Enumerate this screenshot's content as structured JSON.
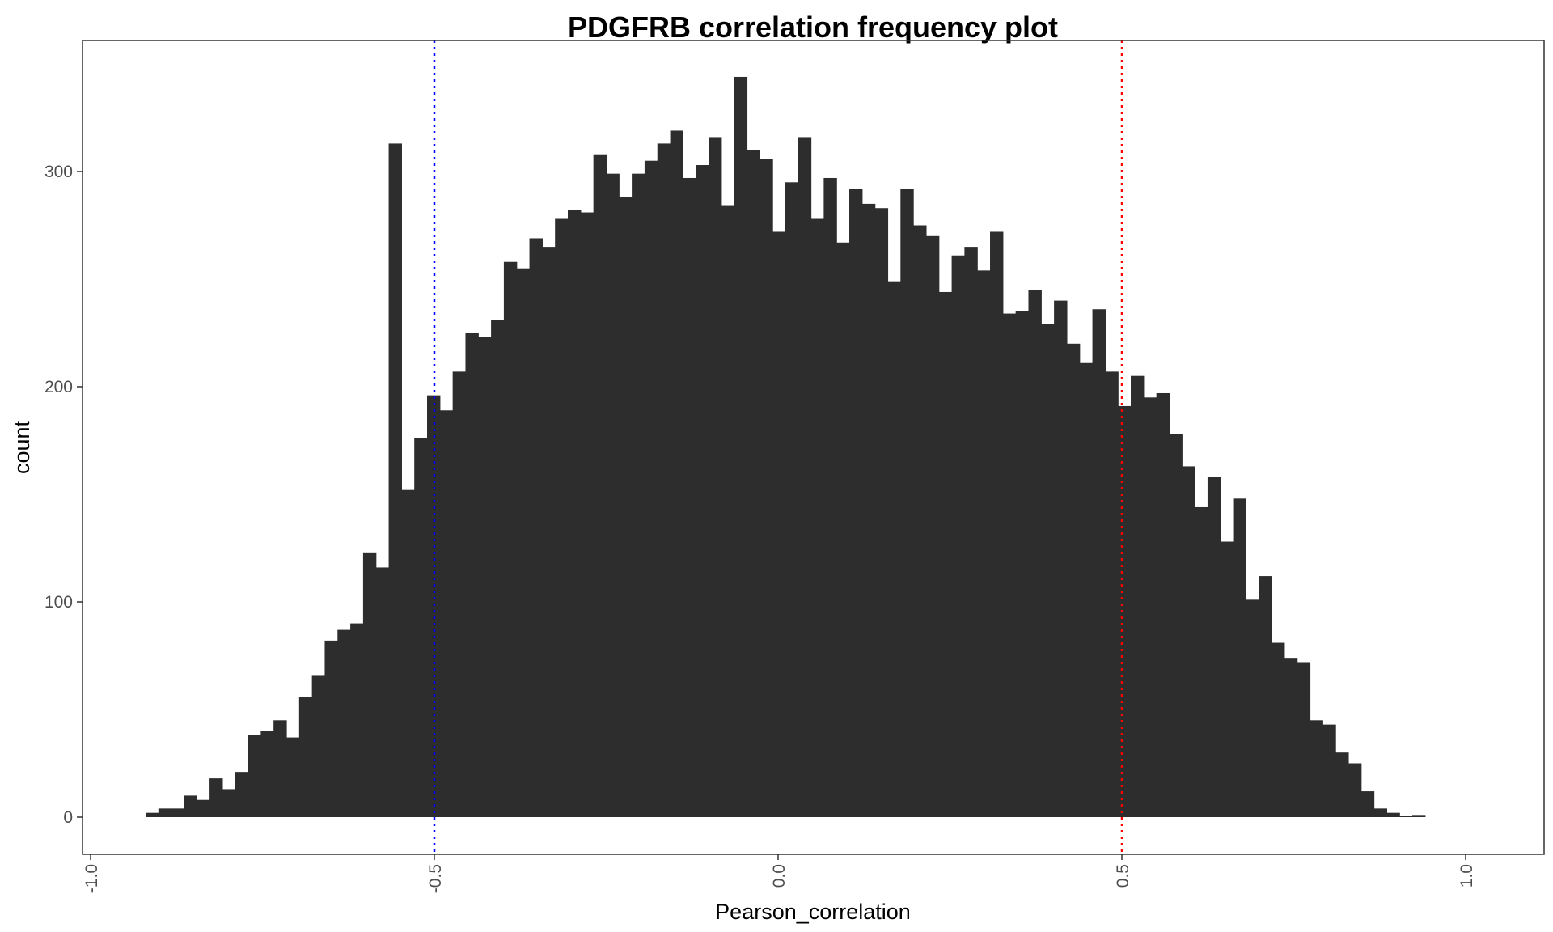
{
  "chart_data": {
    "type": "bar",
    "title": "PDGFRB correlation frequency plot",
    "xlabel": "Pearson_correlation",
    "ylabel": "count",
    "xlim": [
      -1.0,
      1.0
    ],
    "ylim": [
      0,
      350
    ],
    "x_ticks": [
      {
        "value": -1.0,
        "label": "-1.0"
      },
      {
        "value": -0.5,
        "label": "-0.5"
      },
      {
        "value": 0.0,
        "label": "0.0"
      },
      {
        "value": 0.5,
        "label": "0.5"
      },
      {
        "value": 1.0,
        "label": "1.0"
      }
    ],
    "y_ticks": [
      {
        "value": 0,
        "label": "0"
      },
      {
        "value": 100,
        "label": "100"
      },
      {
        "value": 200,
        "label": "200"
      },
      {
        "value": 300,
        "label": "300"
      }
    ],
    "bin_start": -0.92,
    "bin_width": 0.01861,
    "values": [
      2,
      4,
      4,
      10,
      8,
      18,
      13,
      21,
      38,
      40,
      45,
      37,
      56,
      66,
      82,
      87,
      90,
      123,
      116,
      313,
      152,
      176,
      196,
      189,
      207,
      225,
      223,
      231,
      258,
      255,
      269,
      265,
      278,
      282,
      281,
      308,
      299,
      288,
      299,
      305,
      313,
      319,
      297,
      303,
      316,
      284,
      344,
      310,
      306,
      272,
      295,
      316,
      278,
      297,
      267,
      292,
      285,
      283,
      249,
      292,
      275,
      270,
      244,
      261,
      265,
      254,
      272,
      234,
      235,
      245,
      229,
      240,
      220,
      211,
      236,
      207,
      191,
      205,
      195,
      197,
      178,
      163,
      144,
      158,
      128,
      148,
      101,
      112,
      81,
      74,
      72,
      45,
      43,
      30,
      25,
      12,
      4,
      2,
      0,
      1
    ],
    "reference_lines": [
      {
        "x": -0.5,
        "color": "#0000ff",
        "style": "dotted"
      },
      {
        "x": 0.5,
        "color": "#ff0000",
        "style": "dotted"
      }
    ],
    "bar_color": "#2d2d2d",
    "grid": false,
    "legend": "none"
  }
}
